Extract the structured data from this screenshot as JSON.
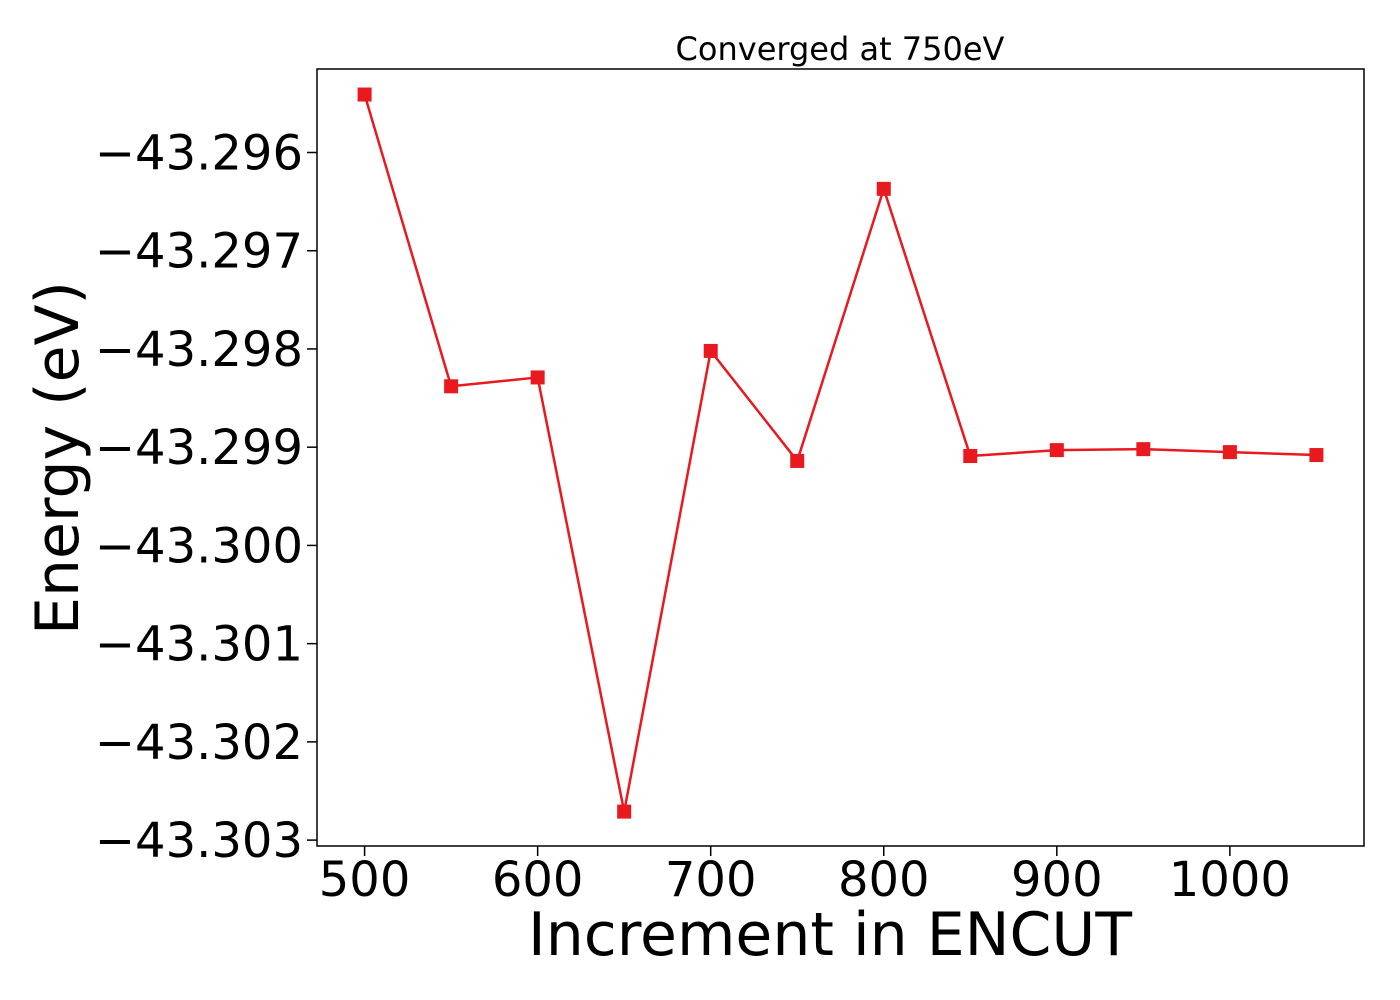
{
  "chart_data": {
    "type": "line",
    "title": "Converged at 750eV",
    "xlabel": "Increment in ENCUT",
    "ylabel": "Energy (eV)",
    "xlim": [
      472.5,
      1077.5
    ],
    "ylim": [
      -43.30306,
      -43.29515
    ],
    "x_ticks": [
      500,
      600,
      700,
      800,
      900,
      1000
    ],
    "x_tick_labels": [
      "500",
      "600",
      "700",
      "800",
      "900",
      "1000"
    ],
    "y_ticks": [
      -43.296,
      -43.297,
      -43.298,
      -43.299,
      -43.3,
      -43.301,
      -43.302,
      -43.303
    ],
    "y_tick_labels": [
      "−43.296",
      "−43.297",
      "−43.298",
      "−43.299",
      "−43.300",
      "−43.301",
      "−43.302",
      "−43.303"
    ],
    "grid": false,
    "series": [
      {
        "color": "#e8191f",
        "marker": "square",
        "x": [
          500,
          550,
          600,
          650,
          700,
          750,
          800,
          850,
          900,
          950,
          1000,
          1050
        ],
        "y": [
          -43.29541,
          -43.29838,
          -43.29829,
          -43.30271,
          -43.29802,
          -43.29914,
          -43.29637,
          -43.29909,
          -43.29903,
          -43.29902,
          -43.29905,
          -43.29908
        ]
      }
    ]
  }
}
